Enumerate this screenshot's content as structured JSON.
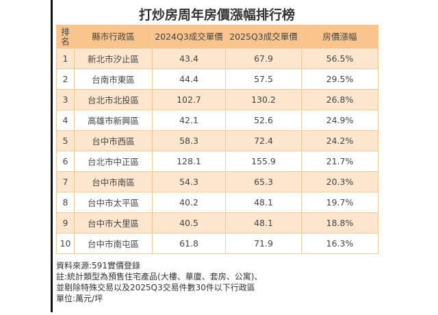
{
  "title": "打炒房周年房價漲幅排行榜",
  "headers": {
    "rank": "排名",
    "district": "縣市行政區",
    "price2024": "2024Q3成交單價",
    "price2025": "2025Q3成交單價",
    "change": "房價漲幅"
  },
  "rows": [
    {
      "rank": "1",
      "district": "新北市汐止區",
      "price2024": "43.4",
      "price2025": "67.9",
      "change": "56.5%"
    },
    {
      "rank": "2",
      "district": "台南市東區",
      "price2024": "44.4",
      "price2025": "57.5",
      "change": "29.5%"
    },
    {
      "rank": "3",
      "district": "台北市北投區",
      "price2024": "102.7",
      "price2025": "130.2",
      "change": "26.8%"
    },
    {
      "rank": "4",
      "district": "高雄市新興區",
      "price2024": "42.1",
      "price2025": "52.6",
      "change": "24.9%"
    },
    {
      "rank": "5",
      "district": "台中市西區",
      "price2024": "58.3",
      "price2025": "72.4",
      "change": "24.2%"
    },
    {
      "rank": "6",
      "district": "台北市中正區",
      "price2024": "128.1",
      "price2025": "155.9",
      "change": "21.7%"
    },
    {
      "rank": "7",
      "district": "台中市南區",
      "price2024": "54.3",
      "price2025": "65.3",
      "change": "20.3%"
    },
    {
      "rank": "8",
      "district": "台中市太平區",
      "price2024": "40.2",
      "price2025": "48.1",
      "change": "19.7%"
    },
    {
      "rank": "9",
      "district": "台中市大里區",
      "price2024": "40.5",
      "price2025": "48.1",
      "change": "18.8%"
    },
    {
      "rank": "10",
      "district": "台中市南屯區",
      "price2024": "61.8",
      "price2025": "71.9",
      "change": "16.3%"
    }
  ],
  "notes": [
    "資料來源:591實價登錄",
    "註:統計類型為預售住宅產品(大樓、華廈、套房、公寓)、",
    "並剔除特殊交易以及2025Q3交易件數30件以下行政區",
    "單位:萬元/坪"
  ]
}
